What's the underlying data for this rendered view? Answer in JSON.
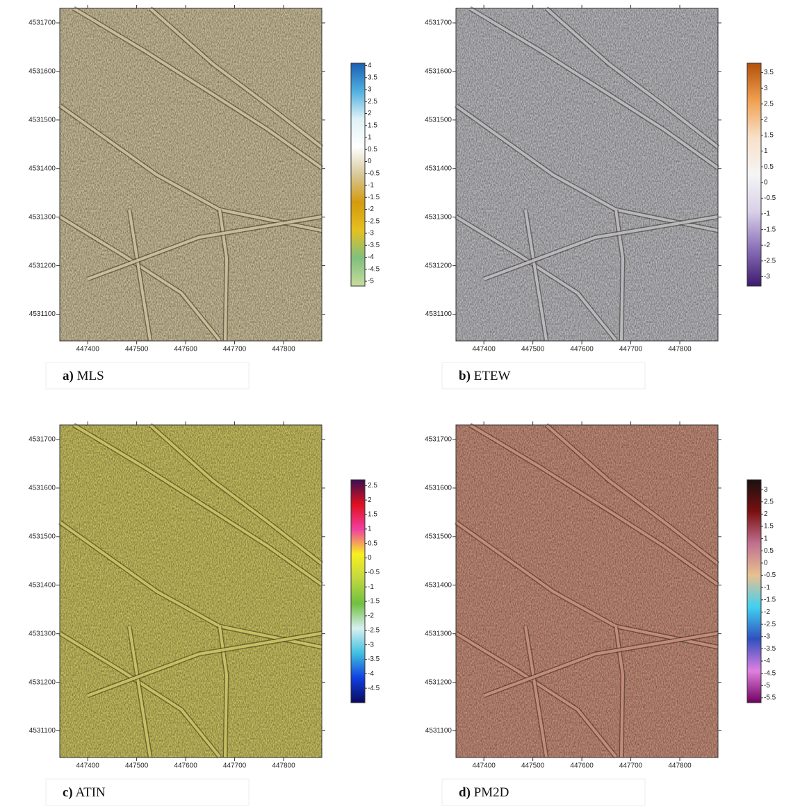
{
  "panels": [
    {
      "label": "a)",
      "name": "MLS",
      "map_color": "#c9bd98",
      "x_range": [
        447343,
        447878
      ],
      "y_range": [
        4531045,
        4531730
      ],
      "xticks": [
        447400,
        447500,
        447600,
        447700,
        447800
      ],
      "yticks": [
        4531700,
        4531600,
        4531500,
        4531400,
        4531300,
        4531200,
        4531100
      ],
      "colorbar_range": [
        -5.2,
        4.1
      ],
      "colorbar_ticks": [
        4,
        3.5,
        3,
        2.5,
        2,
        1.5,
        1,
        0.5,
        0,
        -0.5,
        -1,
        -1.5,
        -2,
        -2.5,
        -3,
        -3.5,
        -4,
        -4.5,
        -5
      ],
      "colormap": [
        "#1a5fb4",
        "#4fb0e0",
        "#dff2f7",
        "#ffffff",
        "#d8c89a",
        "#d49a0e",
        "#e6c020",
        "#7fc07f",
        "#c8dc9c"
      ]
    },
    {
      "label": "b)",
      "name": "ETEW",
      "map_color": "#b9b9bd",
      "x_range": [
        447343,
        447878
      ],
      "y_range": [
        4531045,
        4531730
      ],
      "xticks": [
        447400,
        447500,
        447600,
        447700,
        447800
      ],
      "yticks": [
        4531700,
        4531600,
        4531500,
        4531400,
        4531300,
        4531200,
        4531100
      ],
      "colorbar_range": [
        -3.3,
        3.8
      ],
      "colorbar_ticks": [
        3.5,
        3,
        2.5,
        2,
        1.5,
        1,
        0.5,
        0,
        -0.5,
        -1,
        -1.5,
        -2,
        -2.5,
        -3
      ],
      "colormap": [
        "#b3500a",
        "#f0a050",
        "#f8e0c8",
        "#f5f5f5",
        "#d8d0e8",
        "#8a70b8",
        "#3d1a6e"
      ]
    },
    {
      "label": "c)",
      "name": "ATIN",
      "map_color": "#c8c060",
      "x_range": [
        447343,
        447878
      ],
      "y_range": [
        4531045,
        4531730
      ],
      "xticks": [
        447400,
        447500,
        447600,
        447700,
        447800
      ],
      "yticks": [
        4531700,
        4531600,
        4531500,
        4531400,
        4531300,
        4531200,
        4531100
      ],
      "colorbar_range": [
        -5,
        2.7
      ],
      "colorbar_ticks": [
        2.5,
        2,
        1.5,
        1,
        0.5,
        0,
        -0.5,
        -1,
        -1.5,
        -2,
        -2.5,
        -3,
        -3.5,
        -4,
        -4.5
      ],
      "colormap": [
        "#3a0f50",
        "#e01020",
        "#f040a0",
        "#f8f020",
        "#c0d840",
        "#70c040",
        "#d8f0f0",
        "#40c0e0",
        "#1040e0",
        "#0a0a60"
      ]
    },
    {
      "label": "d)",
      "name": "PM2D",
      "map_color": "#c48c78",
      "x_range": [
        447343,
        447878
      ],
      "y_range": [
        4531045,
        4531730
      ],
      "xticks": [
        447400,
        447500,
        447600,
        447700,
        447800
      ],
      "yticks": [
        4531700,
        4531600,
        4531500,
        4531400,
        4531300,
        4531200,
        4531100
      ],
      "colorbar_range": [
        -5.7,
        3.4
      ],
      "colorbar_ticks": [
        3,
        2.5,
        2,
        1.5,
        1,
        0.5,
        0,
        -0.5,
        -1,
        -1.5,
        -2,
        -2.5,
        -3,
        -3.5,
        -4,
        -4.5,
        -5,
        -5.5
      ],
      "colormap": [
        "#1a1010",
        "#7a1010",
        "#c07090",
        "#e8c090",
        "#40d0f0",
        "#3050c0",
        "#e080e0",
        "#700060"
      ]
    }
  ]
}
